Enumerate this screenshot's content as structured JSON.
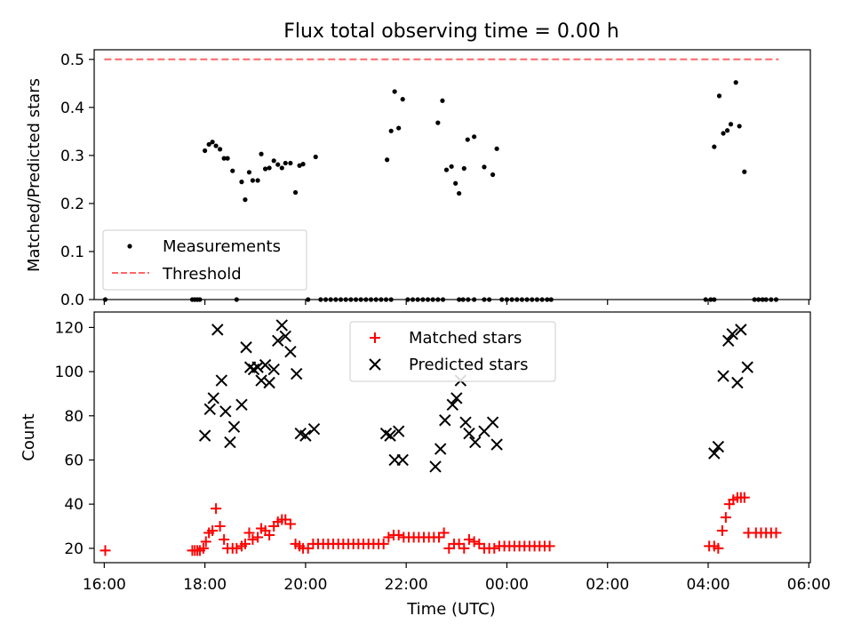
{
  "chart_data": [
    {
      "type": "scatter",
      "title": "Flux total observing time = 0.00 h",
      "xlabel": "",
      "ylabel": "Matched/Predicted stars",
      "xlim": [
        15.8,
        30.03
      ],
      "ylim": [
        0.0,
        0.52
      ],
      "y_ticks": [
        "0.0",
        "0.1",
        "0.2",
        "0.3",
        "0.4",
        "0.5"
      ],
      "y_tick_values": [
        0.0,
        0.1,
        0.2,
        0.3,
        0.4,
        0.5
      ],
      "x_tick_values": [
        16,
        18,
        20,
        22,
        24,
        26,
        28,
        30
      ],
      "grid": false,
      "legend": {
        "position": "lower-left",
        "entries": [
          {
            "name": "Measurements",
            "marker": "dot",
            "color": "#000000"
          },
          {
            "name": "Threshold",
            "marker": "dashed-line",
            "color": "#ff6666"
          }
        ]
      },
      "series": [
        {
          "name": "Measurements",
          "marker": "dot",
          "color": "#000000",
          "points": [
            [
              16.02,
              0.0
            ],
            [
              17.75,
              0.0
            ],
            [
              17.8,
              0.0
            ],
            [
              17.85,
              0.0
            ],
            [
              17.9,
              0.0
            ],
            [
              18.0,
              0.31
            ],
            [
              18.08,
              0.323
            ],
            [
              18.15,
              0.328
            ],
            [
              18.22,
              0.32
            ],
            [
              18.3,
              0.313
            ],
            [
              18.38,
              0.294
            ],
            [
              18.45,
              0.294
            ],
            [
              18.55,
              0.268
            ],
            [
              18.63,
              0.0
            ],
            [
              18.73,
              0.245
            ],
            [
              18.8,
              0.208
            ],
            [
              18.88,
              0.265
            ],
            [
              18.95,
              0.248
            ],
            [
              19.05,
              0.248
            ],
            [
              19.12,
              0.303
            ],
            [
              19.2,
              0.272
            ],
            [
              19.28,
              0.274
            ],
            [
              19.37,
              0.289
            ],
            [
              19.45,
              0.281
            ],
            [
              19.53,
              0.274
            ],
            [
              19.6,
              0.284
            ],
            [
              19.7,
              0.284
            ],
            [
              19.8,
              0.223
            ],
            [
              19.88,
              0.279
            ],
            [
              19.95,
              0.282
            ],
            [
              20.05,
              0.0
            ],
            [
              20.2,
              0.297
            ],
            [
              20.3,
              0.0
            ],
            [
              20.4,
              0.0
            ],
            [
              20.5,
              0.0
            ],
            [
              20.6,
              0.0
            ],
            [
              20.7,
              0.0
            ],
            [
              20.8,
              0.0
            ],
            [
              20.9,
              0.0
            ],
            [
              21.0,
              0.0
            ],
            [
              21.1,
              0.0
            ],
            [
              21.2,
              0.0
            ],
            [
              21.3,
              0.0
            ],
            [
              21.4,
              0.0
            ],
            [
              21.5,
              0.0
            ],
            [
              21.6,
              0.0
            ],
            [
              21.7,
              0.0
            ],
            [
              21.62,
              0.291
            ],
            [
              21.7,
              0.351
            ],
            [
              21.77,
              0.433
            ],
            [
              21.85,
              0.357
            ],
            [
              21.93,
              0.417
            ],
            [
              22.03,
              0.0
            ],
            [
              22.13,
              0.0
            ],
            [
              22.23,
              0.0
            ],
            [
              22.33,
              0.0
            ],
            [
              22.43,
              0.0
            ],
            [
              22.53,
              0.0
            ],
            [
              22.63,
              0.0
            ],
            [
              22.73,
              0.0
            ],
            [
              22.63,
              0.368
            ],
            [
              22.72,
              0.414
            ],
            [
              22.8,
              0.27
            ],
            [
              22.9,
              0.277
            ],
            [
              22.98,
              0.242
            ],
            [
              23.05,
              0.221
            ],
            [
              23.15,
              0.273
            ],
            [
              23.22,
              0.333
            ],
            [
              23.05,
              0.0
            ],
            [
              23.13,
              0.0
            ],
            [
              23.23,
              0.0
            ],
            [
              23.35,
              0.0
            ],
            [
              23.55,
              0.0
            ],
            [
              23.65,
              0.0
            ],
            [
              23.35,
              0.339
            ],
            [
              23.55,
              0.276
            ],
            [
              23.72,
              0.26
            ],
            [
              23.8,
              0.314
            ],
            [
              23.9,
              0.0
            ],
            [
              24.0,
              0.0
            ],
            [
              24.1,
              0.0
            ],
            [
              24.2,
              0.0
            ],
            [
              24.3,
              0.0
            ],
            [
              24.4,
              0.0
            ],
            [
              24.5,
              0.0
            ],
            [
              24.6,
              0.0
            ],
            [
              24.7,
              0.0
            ],
            [
              24.8,
              0.0
            ],
            [
              24.88,
              0.0
            ],
            [
              27.95,
              0.0
            ],
            [
              28.05,
              0.0
            ],
            [
              28.12,
              0.0
            ],
            [
              28.12,
              0.318
            ],
            [
              28.22,
              0.424
            ],
            [
              28.3,
              0.346
            ],
            [
              28.38,
              0.352
            ],
            [
              28.45,
              0.365
            ],
            [
              28.55,
              0.452
            ],
            [
              28.62,
              0.361
            ],
            [
              28.72,
              0.266
            ],
            [
              28.92,
              0.0
            ],
            [
              29.0,
              0.0
            ],
            [
              29.08,
              0.0
            ],
            [
              29.15,
              0.0
            ],
            [
              29.25,
              0.0
            ],
            [
              29.35,
              0.0
            ]
          ]
        },
        {
          "name": "Threshold",
          "marker": "dashed-line",
          "color": "#ff6666",
          "points": [
            [
              16.0,
              0.5
            ],
            [
              29.4,
              0.5
            ]
          ]
        }
      ]
    },
    {
      "type": "scatter",
      "title": "",
      "xlabel": "Time (UTC)",
      "ylabel": "Count",
      "xlim": [
        15.8,
        30.03
      ],
      "ylim": [
        13.5,
        127
      ],
      "x_ticks": [
        "16:00",
        "18:00",
        "20:00",
        "22:00",
        "00:00",
        "02:00",
        "04:00",
        "06:00"
      ],
      "x_tick_values": [
        16,
        18,
        20,
        22,
        24,
        26,
        28,
        30
      ],
      "y_ticks": [
        "20",
        "40",
        "60",
        "80",
        "100",
        "120"
      ],
      "y_tick_values": [
        20,
        40,
        60,
        80,
        100,
        120
      ],
      "grid": false,
      "legend": {
        "position": "top-center",
        "entries": [
          {
            "name": "Matched stars",
            "marker": "plus",
            "color": "#ff0000"
          },
          {
            "name": "Predicted stars",
            "marker": "x",
            "color": "#000000"
          }
        ]
      },
      "series": [
        {
          "name": "Matched stars",
          "marker": "plus",
          "color": "#ff0000",
          "points": [
            [
              16.02,
              19
            ],
            [
              17.75,
              19
            ],
            [
              17.8,
              19
            ],
            [
              17.85,
              19
            ],
            [
              17.9,
              19
            ],
            [
              17.97,
              20
            ],
            [
              18.02,
              23
            ],
            [
              18.08,
              27
            ],
            [
              18.15,
              28
            ],
            [
              18.22,
              38
            ],
            [
              18.3,
              30
            ],
            [
              18.38,
              24
            ],
            [
              18.45,
              20
            ],
            [
              18.55,
              20
            ],
            [
              18.63,
              20
            ],
            [
              18.73,
              21
            ],
            [
              18.8,
              22
            ],
            [
              18.88,
              27
            ],
            [
              18.95,
              24
            ],
            [
              19.05,
              25
            ],
            [
              19.12,
              29
            ],
            [
              19.2,
              28
            ],
            [
              19.28,
              26
            ],
            [
              19.37,
              30
            ],
            [
              19.45,
              32
            ],
            [
              19.53,
              33
            ],
            [
              19.6,
              33
            ],
            [
              19.7,
              31
            ],
            [
              19.8,
              22
            ],
            [
              19.88,
              21
            ],
            [
              19.95,
              20
            ],
            [
              20.05,
              20
            ],
            [
              20.15,
              22
            ],
            [
              20.25,
              22
            ],
            [
              20.35,
              22
            ],
            [
              20.45,
              22
            ],
            [
              20.55,
              22
            ],
            [
              20.65,
              22
            ],
            [
              20.75,
              22
            ],
            [
              20.85,
              22
            ],
            [
              20.95,
              22
            ],
            [
              21.05,
              22
            ],
            [
              21.15,
              22
            ],
            [
              21.25,
              22
            ],
            [
              21.35,
              22
            ],
            [
              21.45,
              22
            ],
            [
              21.55,
              22
            ],
            [
              21.65,
              25
            ],
            [
              21.75,
              26
            ],
            [
              21.85,
              26
            ],
            [
              21.95,
              25
            ],
            [
              22.05,
              25
            ],
            [
              22.15,
              25
            ],
            [
              22.25,
              25
            ],
            [
              22.35,
              25
            ],
            [
              22.45,
              25
            ],
            [
              22.55,
              25
            ],
            [
              22.65,
              25
            ],
            [
              22.75,
              27
            ],
            [
              22.85,
              20
            ],
            [
              22.95,
              22
            ],
            [
              23.05,
              22
            ],
            [
              23.15,
              20
            ],
            [
              23.25,
              24
            ],
            [
              23.35,
              23
            ],
            [
              23.45,
              22
            ],
            [
              23.55,
              20
            ],
            [
              23.65,
              20
            ],
            [
              23.75,
              20
            ],
            [
              23.85,
              21
            ],
            [
              23.95,
              21
            ],
            [
              24.05,
              21
            ],
            [
              24.15,
              21
            ],
            [
              24.25,
              21
            ],
            [
              24.35,
              21
            ],
            [
              24.45,
              21
            ],
            [
              24.55,
              21
            ],
            [
              24.65,
              21
            ],
            [
              24.75,
              21
            ],
            [
              24.85,
              21
            ],
            [
              28.02,
              21
            ],
            [
              28.12,
              21
            ],
            [
              28.2,
              20
            ],
            [
              28.28,
              28
            ],
            [
              28.35,
              34
            ],
            [
              28.42,
              40
            ],
            [
              28.5,
              42
            ],
            [
              28.58,
              43
            ],
            [
              28.65,
              43
            ],
            [
              28.72,
              43
            ],
            [
              28.8,
              27
            ],
            [
              28.95,
              27
            ],
            [
              29.05,
              27
            ],
            [
              29.15,
              27
            ],
            [
              29.25,
              27
            ],
            [
              29.35,
              27
            ]
          ]
        },
        {
          "name": "Predicted stars",
          "marker": "x",
          "color": "#000000",
          "points": [
            [
              18.0,
              71
            ],
            [
              18.1,
              83
            ],
            [
              18.17,
              88
            ],
            [
              18.25,
              119
            ],
            [
              18.33,
              96
            ],
            [
              18.41,
              82
            ],
            [
              18.5,
              68
            ],
            [
              18.58,
              75
            ],
            [
              18.73,
              85
            ],
            [
              18.82,
              111
            ],
            [
              18.9,
              102
            ],
            [
              18.97,
              101
            ],
            [
              19.05,
              102
            ],
            [
              19.12,
              96
            ],
            [
              19.2,
              103
            ],
            [
              19.28,
              95
            ],
            [
              19.37,
              101
            ],
            [
              19.45,
              114
            ],
            [
              19.53,
              121
            ],
            [
              19.6,
              116
            ],
            [
              19.7,
              109
            ],
            [
              19.82,
              99
            ],
            [
              19.9,
              72
            ],
            [
              20.0,
              71
            ],
            [
              20.17,
              74
            ],
            [
              21.6,
              72
            ],
            [
              21.68,
              71
            ],
            [
              21.77,
              60
            ],
            [
              21.85,
              73
            ],
            [
              21.93,
              60
            ],
            [
              22.58,
              57
            ],
            [
              22.68,
              65
            ],
            [
              22.77,
              78
            ],
            [
              22.92,
              85
            ],
            [
              23.0,
              88
            ],
            [
              23.08,
              96
            ],
            [
              23.18,
              77
            ],
            [
              23.25,
              72
            ],
            [
              23.37,
              68
            ],
            [
              23.55,
              73
            ],
            [
              23.72,
              77
            ],
            [
              23.8,
              67
            ],
            [
              28.12,
              63
            ],
            [
              28.2,
              66
            ],
            [
              28.3,
              98
            ],
            [
              28.4,
              114
            ],
            [
              28.48,
              117
            ],
            [
              28.58,
              95
            ],
            [
              28.65,
              119
            ],
            [
              28.78,
              102
            ]
          ]
        }
      ]
    }
  ]
}
